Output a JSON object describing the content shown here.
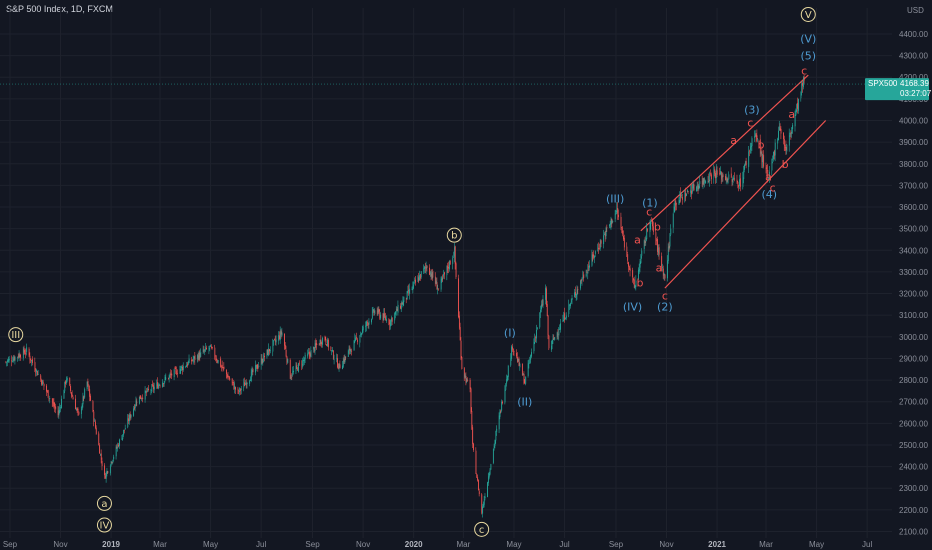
{
  "header": {
    "title": "S&P 500 Index, 1D, FXCM"
  },
  "price_badge": {
    "symbol": "SPX500",
    "price": "4168.39",
    "countdown": "03:27:07",
    "color": "#26a69a"
  },
  "colors": {
    "background": "#131722",
    "up": "#26a69a",
    "down": "#ef5350",
    "grid": "#1e222d",
    "channel": "#ef5350",
    "wave_blue": "#4e9bd1",
    "wave_circle": "#e8d9a0"
  },
  "chart_data": {
    "type": "candlestick",
    "y_unit": "USD",
    "ylim": [
      2070,
      4520
    ],
    "y_ticks": [
      2100,
      2200,
      2300,
      2400,
      2500,
      2600,
      2700,
      2800,
      2900,
      3000,
      3100,
      3200,
      3300,
      3400,
      3500,
      3600,
      3700,
      3800,
      3900,
      4000,
      4100,
      4200,
      4300,
      4400
    ],
    "x_ticks": [
      {
        "label": "Sep",
        "bold": false
      },
      {
        "label": "Nov",
        "bold": false
      },
      {
        "label": "2019",
        "bold": true
      },
      {
        "label": "Mar",
        "bold": false
      },
      {
        "label": "May",
        "bold": false
      },
      {
        "label": "Jul",
        "bold": false
      },
      {
        "label": "Sep",
        "bold": false
      },
      {
        "label": "Nov",
        "bold": false
      },
      {
        "label": "2020",
        "bold": true
      },
      {
        "label": "Mar",
        "bold": false
      },
      {
        "label": "May",
        "bold": false
      },
      {
        "label": "Jul",
        "bold": false
      },
      {
        "label": "Sep",
        "bold": false
      },
      {
        "label": "Nov",
        "bold": false
      },
      {
        "label": "2021",
        "bold": true
      },
      {
        "label": "Mar",
        "bold": false
      },
      {
        "label": "May",
        "bold": false
      },
      {
        "label": "Jul",
        "bold": false
      }
    ],
    "key_points": [
      {
        "date": "2018-08-25",
        "price": 2880
      },
      {
        "date": "2018-09-21",
        "price": 2935
      },
      {
        "date": "2018-10-29",
        "price": 2640
      },
      {
        "date": "2018-11-08",
        "price": 2810
      },
      {
        "date": "2018-11-23",
        "price": 2630
      },
      {
        "date": "2018-12-03",
        "price": 2790
      },
      {
        "date": "2018-12-24",
        "price": 2350
      },
      {
        "date": "2019-02-01",
        "price": 2710
      },
      {
        "date": "2019-04-30",
        "price": 2950
      },
      {
        "date": "2019-06-03",
        "price": 2740
      },
      {
        "date": "2019-07-26",
        "price": 3020
      },
      {
        "date": "2019-08-05",
        "price": 2820
      },
      {
        "date": "2019-09-15",
        "price": 3000
      },
      {
        "date": "2019-10-03",
        "price": 2860
      },
      {
        "date": "2019-11-15",
        "price": 3120
      },
      {
        "date": "2019-12-03",
        "price": 3070
      },
      {
        "date": "2020-01-17",
        "price": 3330
      },
      {
        "date": "2020-01-31",
        "price": 3220
      },
      {
        "date": "2020-02-19",
        "price": 3395
      },
      {
        "date": "2020-02-28",
        "price": 2860
      },
      {
        "date": "2020-03-09",
        "price": 2750
      },
      {
        "date": "2020-03-12",
        "price": 2490
      },
      {
        "date": "2020-03-23",
        "price": 2190
      },
      {
        "date": "2020-04-29",
        "price": 2960
      },
      {
        "date": "2020-05-14",
        "price": 2790
      },
      {
        "date": "2020-06-08",
        "price": 3220
      },
      {
        "date": "2020-06-12",
        "price": 2940
      },
      {
        "date": "2020-07-22",
        "price": 3270
      },
      {
        "date": "2020-09-02",
        "price": 3585
      },
      {
        "date": "2020-09-23",
        "price": 3225
      },
      {
        "date": "2020-10-12",
        "price": 3550
      },
      {
        "date": "2020-10-30",
        "price": 3270
      },
      {
        "date": "2020-11-10",
        "price": 3620
      },
      {
        "date": "2020-12-28",
        "price": 3760
      },
      {
        "date": "2021-01-29",
        "price": 3710
      },
      {
        "date": "2021-02-15",
        "price": 3950
      },
      {
        "date": "2021-03-04",
        "price": 3720
      },
      {
        "date": "2021-03-17",
        "price": 3980
      },
      {
        "date": "2021-03-25",
        "price": 3860
      },
      {
        "date": "2021-04-13",
        "price": 4145
      },
      {
        "date": "2021-04-16",
        "price": 4190
      }
    ],
    "x_range": {
      "start": "2018-08-20",
      "end": "2021-07-31"
    },
    "current_price": 4168.39,
    "channel_lines": [
      {
        "from": {
          "date": "2020-10-01",
          "price": 3490
        },
        "to": {
          "date": "2021-04-21",
          "price": 4210
        }
      },
      {
        "from": {
          "date": "2020-10-30",
          "price": 3225
        },
        "to": {
          "date": "2021-05-12",
          "price": 4000
        }
      }
    ],
    "wave_labels": [
      {
        "text": "III",
        "style": "circle",
        "date": "2018-09-08",
        "price": 3010
      },
      {
        "text": "a",
        "style": "circle",
        "date": "2018-12-24",
        "price": 2230
      },
      {
        "text": "IV",
        "style": "circle",
        "date": "2018-12-24",
        "price": 2130
      },
      {
        "text": "b",
        "style": "circle",
        "date": "2020-02-19",
        "price": 3470
      },
      {
        "text": "c",
        "style": "circle",
        "date": "2020-03-23",
        "price": 2110
      },
      {
        "text": "V",
        "style": "circle",
        "date": "2021-04-21",
        "price": 4490
      },
      {
        "text": "(I)",
        "style": "blue",
        "date": "2020-04-26",
        "price": 3020
      },
      {
        "text": "(II)",
        "style": "blue",
        "date": "2020-05-14",
        "price": 2700
      },
      {
        "text": "(III)",
        "style": "blue",
        "date": "2020-08-31",
        "price": 3640
      },
      {
        "text": "(IV)",
        "style": "blue",
        "date": "2020-09-21",
        "price": 3140
      },
      {
        "text": "(1)",
        "style": "blue",
        "date": "2020-10-12",
        "price": 3620
      },
      {
        "text": "(2)",
        "style": "blue",
        "date": "2020-10-30",
        "price": 3140
      },
      {
        "text": "(3)",
        "style": "blue",
        "date": "2021-02-12",
        "price": 4050
      },
      {
        "text": "(4)",
        "style": "blue",
        "date": "2021-03-05",
        "price": 3660
      },
      {
        "text": "(5)",
        "style": "blue",
        "date": "2021-04-21",
        "price": 4300
      },
      {
        "text": "(V)",
        "style": "blue",
        "date": "2021-04-21",
        "price": 4380
      },
      {
        "text": "a",
        "style": "red",
        "date": "2020-09-27",
        "price": 3450
      },
      {
        "text": "b",
        "style": "red",
        "date": "2020-09-30",
        "price": 3250
      },
      {
        "text": "c",
        "style": "red",
        "date": "2020-10-11",
        "price": 3580
      },
      {
        "text": "b",
        "style": "red",
        "date": "2020-10-21",
        "price": 3510
      },
      {
        "text": "a",
        "style": "red",
        "date": "2020-10-23",
        "price": 3320
      },
      {
        "text": "c",
        "style": "red",
        "date": "2020-10-30",
        "price": 3190
      },
      {
        "text": "a",
        "style": "red",
        "date": "2021-01-21",
        "price": 3910
      },
      {
        "text": "c",
        "style": "red",
        "date": "2021-02-10",
        "price": 3990
      },
      {
        "text": "b",
        "style": "red",
        "date": "2021-02-23",
        "price": 3890
      },
      {
        "text": "a",
        "style": "red",
        "date": "2021-03-04",
        "price": 3740
      },
      {
        "text": "c",
        "style": "red",
        "date": "2021-03-09",
        "price": 3690
      },
      {
        "text": "b",
        "style": "red",
        "date": "2021-03-24",
        "price": 3800
      },
      {
        "text": "a",
        "style": "red",
        "date": "2021-04-01",
        "price": 4030
      },
      {
        "text": "c",
        "style": "red",
        "date": "2021-04-16",
        "price": 4230
      }
    ]
  }
}
